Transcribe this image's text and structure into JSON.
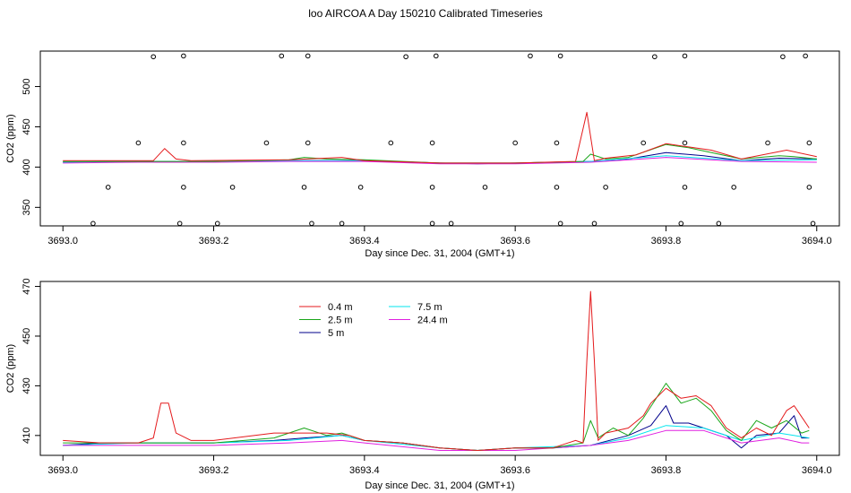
{
  "title": "loo AIRCOA A  Day 150210  Calibrated Timeseries",
  "colors": {
    "h0_4": "#e41a1c",
    "h2_5": "#1aa61a",
    "h5": "#00008b",
    "h7_5": "#00e5ee",
    "h24_4": "#e020e0",
    "flags": "#000000"
  },
  "chart_data": [
    {
      "type": "line",
      "title": "",
      "xlabel": "Day since Dec. 31, 2004 (GMT+1)",
      "ylabel": "CO2 (ppm)",
      "xlim": [
        3692.97,
        3694.03
      ],
      "ylim": [
        327,
        544
      ],
      "xticks": [
        "3693.0",
        "3693.2",
        "3693.4",
        "3693.6",
        "3693.8",
        "3694.0"
      ],
      "yticks": [
        "350",
        "400",
        "450",
        "500"
      ],
      "grid": false,
      "series": [
        {
          "key": "h5",
          "x": [
            3693.0,
            3693.05,
            3693.1,
            3693.2,
            3693.3,
            3693.4,
            3693.5,
            3693.55,
            3693.6,
            3693.7,
            3693.75,
            3693.8,
            3693.85,
            3693.9,
            3693.95,
            3694.0
          ],
          "values": [
            406,
            407,
            407,
            407,
            408,
            408,
            405,
            404,
            405,
            407,
            410,
            418,
            414,
            408,
            411,
            410
          ]
        },
        {
          "key": "h7_5",
          "x": [
            3693.0,
            3693.1,
            3693.2,
            3693.3,
            3693.4,
            3693.5,
            3693.6,
            3693.7,
            3693.8,
            3693.9,
            3694.0
          ],
          "values": [
            406,
            407,
            407,
            408,
            408,
            405,
            405,
            407,
            414,
            408,
            409
          ]
        },
        {
          "key": "h24_4",
          "x": [
            3693.0,
            3693.1,
            3693.2,
            3693.3,
            3693.4,
            3693.5,
            3693.6,
            3693.7,
            3693.8,
            3693.9,
            3694.0
          ],
          "values": [
            405,
            406,
            406,
            407,
            407,
            404,
            404,
            406,
            412,
            407,
            406
          ]
        },
        {
          "key": "h2_5",
          "x": [
            3693.0,
            3693.1,
            3693.2,
            3693.3,
            3693.32,
            3693.35,
            3693.4,
            3693.5,
            3693.6,
            3693.69,
            3693.7,
            3693.72,
            3693.75,
            3693.8,
            3693.83,
            3693.85,
            3693.9,
            3693.95,
            3693.97,
            3694.0
          ],
          "values": [
            407,
            407,
            407,
            409,
            412,
            410,
            409,
            405,
            405,
            407,
            416,
            410,
            412,
            428,
            424,
            420,
            410,
            414,
            413,
            410
          ]
        },
        {
          "key": "h0_4",
          "x": [
            3693.0,
            3693.12,
            3693.135,
            3693.15,
            3693.17,
            3693.3,
            3693.37,
            3693.4,
            3693.5,
            3693.6,
            3693.68,
            3693.695,
            3693.705,
            3693.72,
            3693.76,
            3693.8,
            3693.83,
            3693.86,
            3693.9,
            3693.96,
            3694.0
          ],
          "values": [
            408,
            408,
            423,
            410,
            408,
            409,
            412,
            408,
            405,
            405,
            407,
            468,
            408,
            411,
            415,
            429,
            425,
            421,
            410,
            421,
            413
          ]
        }
      ],
      "flags_x": [
        3693.04,
        3693.06,
        3693.1,
        3693.12,
        3693.155,
        3693.16,
        3693.16,
        3693.16,
        3693.205,
        3693.225,
        3693.27,
        3693.29,
        3693.32,
        3693.325,
        3693.325,
        3693.33,
        3693.37,
        3693.395,
        3693.435,
        3693.455,
        3693.49,
        3693.49,
        3693.49,
        3693.495,
        3693.515,
        3693.56,
        3693.6,
        3693.62,
        3693.655,
        3693.655,
        3693.66,
        3693.66,
        3693.705,
        3693.72,
        3693.77,
        3693.785,
        3693.82,
        3693.825,
        3693.825,
        3693.825,
        3693.87,
        3693.89,
        3693.935,
        3693.955,
        3693.985,
        3693.99,
        3693.99,
        3693.995
      ],
      "flags_y": [
        330,
        375,
        430,
        537,
        330,
        375,
        430,
        538,
        330,
        375,
        430,
        538,
        375,
        430,
        538,
        330,
        330,
        375,
        430,
        537,
        330,
        375,
        430,
        538,
        330,
        375,
        430,
        538,
        375,
        430,
        330,
        538,
        330,
        375,
        430,
        537,
        330,
        375,
        430,
        538,
        330,
        375,
        430,
        537,
        538,
        430,
        375,
        330
      ]
    },
    {
      "type": "line",
      "title": "",
      "xlabel": "Day since Dec. 31, 2004 (GMT+1)",
      "ylabel": "CO2 (ppm)",
      "xlim": [
        3692.97,
        3694.03
      ],
      "ylim": [
        402,
        472
      ],
      "xticks": [
        "3693.0",
        "3693.2",
        "3693.4",
        "3693.6",
        "3693.8",
        "3694.0"
      ],
      "yticks": [
        "410",
        "430",
        "450",
        "470"
      ],
      "grid": false,
      "legend": {
        "placement": "top-left",
        "entries": [
          {
            "label": "0.4 m",
            "key": "h0_4"
          },
          {
            "label": "2.5 m",
            "key": "h2_5"
          },
          {
            "label": "5 m",
            "key": "h5"
          },
          {
            "label": "7.5 m",
            "key": "h7_5"
          },
          {
            "label": "24.4 m",
            "key": "h24_4"
          }
        ]
      },
      "series": [
        {
          "key": "h5",
          "x": [
            3693.0,
            3693.05,
            3693.1,
            3693.2,
            3693.28,
            3693.32,
            3693.37,
            3693.4,
            3693.45,
            3693.5,
            3693.55,
            3693.6,
            3693.65,
            3693.7,
            3693.75,
            3693.78,
            3693.8,
            3693.81,
            3693.83,
            3693.85,
            3693.88,
            3693.9,
            3693.92,
            3693.95,
            3693.97,
            3693.98,
            3693.99
          ],
          "values": [
            406,
            407,
            407,
            407,
            408,
            409,
            410,
            408,
            407,
            405,
            404,
            405,
            405,
            406,
            410,
            414,
            422,
            415,
            415,
            413,
            410,
            405,
            410,
            411,
            418,
            409,
            409
          ]
        },
        {
          "key": "h7_5",
          "x": [
            3693.0,
            3693.1,
            3693.2,
            3693.3,
            3693.37,
            3693.4,
            3693.5,
            3693.55,
            3693.6,
            3693.7,
            3693.75,
            3693.8,
            3693.85,
            3693.9,
            3693.95,
            3693.99
          ],
          "values": [
            406,
            407,
            407,
            408,
            410,
            408,
            405,
            404,
            405,
            406,
            409,
            414,
            413,
            408,
            411,
            409
          ]
        },
        {
          "key": "h24_4",
          "x": [
            3693.0,
            3693.1,
            3693.2,
            3693.3,
            3693.37,
            3693.4,
            3693.5,
            3693.55,
            3693.6,
            3693.7,
            3693.75,
            3693.8,
            3693.85,
            3693.9,
            3693.95,
            3693.98,
            3693.99
          ],
          "values": [
            406,
            406,
            406,
            407,
            408,
            407,
            404,
            404,
            404,
            406,
            408,
            412,
            412,
            407,
            409,
            407,
            407
          ]
        },
        {
          "key": "h2_5",
          "x": [
            3693.0,
            3693.05,
            3693.1,
            3693.2,
            3693.28,
            3693.32,
            3693.35,
            3693.37,
            3693.4,
            3693.45,
            3693.5,
            3693.55,
            3693.6,
            3693.65,
            3693.69,
            3693.7,
            3693.71,
            3693.73,
            3693.75,
            3693.77,
            3693.8,
            3693.82,
            3693.84,
            3693.86,
            3693.88,
            3693.9,
            3693.92,
            3693.94,
            3693.96,
            3693.98,
            3693.99
          ],
          "values": [
            407,
            407,
            407,
            407,
            409,
            413,
            410,
            411,
            408,
            407,
            405,
            404,
            405,
            405,
            407,
            416,
            409,
            413,
            410,
            417,
            431,
            423,
            425,
            420,
            412,
            408,
            416,
            413,
            416,
            411,
            412
          ]
        },
        {
          "key": "h0_4",
          "x": [
            3693.0,
            3693.05,
            3693.1,
            3693.12,
            3693.13,
            3693.14,
            3693.15,
            3693.17,
            3693.2,
            3693.28,
            3693.35,
            3693.38,
            3693.4,
            3693.45,
            3693.5,
            3693.55,
            3693.6,
            3693.65,
            3693.68,
            3693.69,
            3693.695,
            3693.7,
            3693.705,
            3693.71,
            3693.72,
            3693.75,
            3693.77,
            3693.78,
            3693.8,
            3693.82,
            3693.84,
            3693.86,
            3693.88,
            3693.9,
            3693.92,
            3693.94,
            3693.96,
            3693.97,
            3693.99
          ],
          "values": [
            408,
            407,
            407,
            409,
            423,
            423,
            411,
            408,
            408,
            411,
            411,
            410,
            408,
            407,
            405,
            404,
            405,
            405,
            408,
            407,
            440,
            468,
            440,
            408,
            411,
            413,
            418,
            423,
            429,
            425,
            426,
            422,
            413,
            409,
            413,
            410,
            420,
            422,
            413
          ]
        }
      ]
    }
  ]
}
